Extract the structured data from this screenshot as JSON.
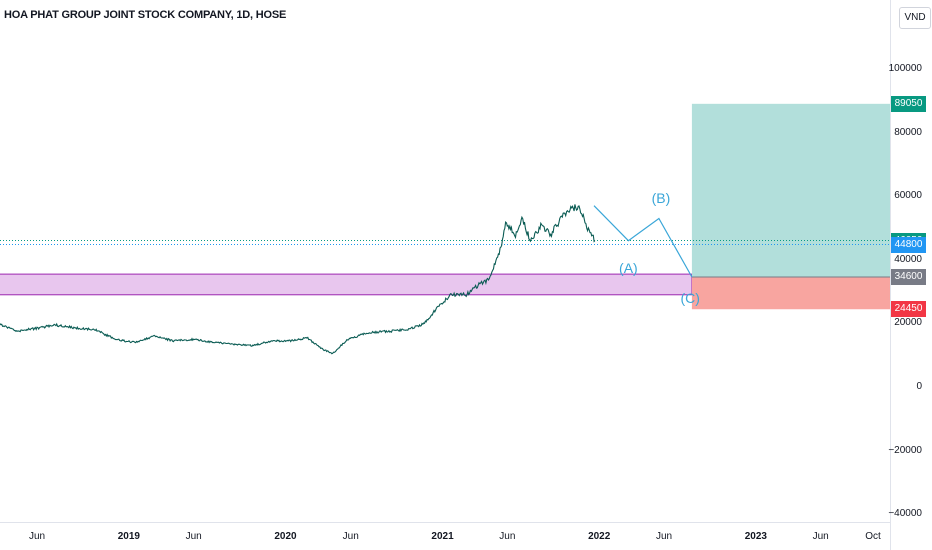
{
  "title": "HOA PHAT GROUP JOINT STOCK COMPANY, 1D, HOSE",
  "currency": "VND",
  "chart_data": {
    "type": "line",
    "ylim": [
      -40000,
      120000
    ],
    "y_ticks": [
      "100000",
      "80000",
      "60000",
      "40000",
      "20000",
      "0",
      "−20000",
      "−40000"
    ],
    "x_ticks": [
      {
        "label": "Jun",
        "date": "2018-06-01",
        "bold": false
      },
      {
        "label": "2019",
        "date": "2019-01-01",
        "bold": true
      },
      {
        "label": "Jun",
        "date": "2019-06-01",
        "bold": false
      },
      {
        "label": "2020",
        "date": "2020-01-01",
        "bold": true
      },
      {
        "label": "Jun",
        "date": "2020-06-01",
        "bold": false
      },
      {
        "label": "2021",
        "date": "2021-01-01",
        "bold": true
      },
      {
        "label": "Jun",
        "date": "2021-06-01",
        "bold": false
      },
      {
        "label": "2022",
        "date": "2022-01-01",
        "bold": true
      },
      {
        "label": "Jun",
        "date": "2022-06-01",
        "bold": false
      },
      {
        "label": "2023",
        "date": "2023-01-01",
        "bold": true
      },
      {
        "label": "Jun",
        "date": "2023-06-01",
        "bold": false
      },
      {
        "label": "Oct",
        "date": "2023-10-01",
        "bold": false
      }
    ],
    "series": [
      {
        "color": "#0b5c54",
        "x": [
          "2018-01-02",
          "2018-03-01",
          "2018-04-15",
          "2018-06-01",
          "2018-07-15",
          "2018-09-01",
          "2018-10-15",
          "2018-12-01",
          "2019-01-15",
          "2019-03-01",
          "2019-04-15",
          "2019-06-01",
          "2019-07-15",
          "2019-09-01",
          "2019-10-15",
          "2019-12-01",
          "2020-01-15",
          "2020-02-20",
          "2020-03-25",
          "2020-04-20",
          "2020-05-25",
          "2020-07-10",
          "2020-08-25",
          "2020-10-10",
          "2020-11-20",
          "2020-12-20",
          "2021-01-20",
          "2021-02-25",
          "2021-03-25",
          "2021-04-20",
          "2021-05-15",
          "2021-05-28",
          "2021-06-20",
          "2021-07-05",
          "2021-07-25",
          "2021-08-20",
          "2021-09-10",
          "2021-10-05",
          "2021-10-25",
          "2021-11-15",
          "2021-12-05",
          "2021-12-22"
        ],
        "y": [
          21000,
          20000,
          17500,
          18500,
          19500,
          18500,
          18000,
          15000,
          14000,
          16000,
          14500,
          15000,
          14000,
          13500,
          13000,
          14500,
          14500,
          15500,
          12000,
          10500,
          15000,
          17000,
          17500,
          18000,
          20000,
          25000,
          29000,
          29000,
          32000,
          34000,
          43000,
          51000,
          48000,
          53000,
          46000,
          51000,
          48000,
          53000,
          56000,
          57000,
          50000,
          46050
        ]
      }
    ],
    "wave_path": {
      "color": "#3aa6d8",
      "x": [
        "2021-12-20",
        "2022-03-10",
        "2022-05-20",
        "2022-08-05"
      ],
      "y": [
        57000,
        46000,
        53000,
        34600
      ]
    },
    "wave_labels": [
      {
        "text": "(A)",
        "date": "2022-03-10",
        "value": 37500
      },
      {
        "text": "(B)",
        "date": "2022-05-25",
        "value": 59500
      },
      {
        "text": "(C)",
        "date": "2022-08-01",
        "value": 28000
      }
    ],
    "support_zone": {
      "x_start": "2018-01-25",
      "x_end": "2022-08-05",
      "y_low": 29000,
      "y_high": 35500,
      "fill": "#e8c6ee",
      "stroke": "#9c27b0"
    },
    "position": {
      "x_start": "2022-08-05",
      "entry": 34600,
      "target": 89050,
      "stop": 24450,
      "profit_color": "#b2dfdb",
      "loss_color": "#f8a5a0"
    },
    "price_lines": [
      46050,
      44800
    ],
    "price_labels": [
      {
        "value": "89050",
        "y": 89050,
        "color": "#089981"
      },
      {
        "value": "46050",
        "y": 46050,
        "color": "#089981"
      },
      {
        "value": "44800",
        "y": 44800,
        "color": "#2196f3"
      },
      {
        "value": "34600",
        "y": 34600,
        "color": "#787b86"
      },
      {
        "value": "24450",
        "y": 24450,
        "color": "#f23645"
      }
    ]
  }
}
